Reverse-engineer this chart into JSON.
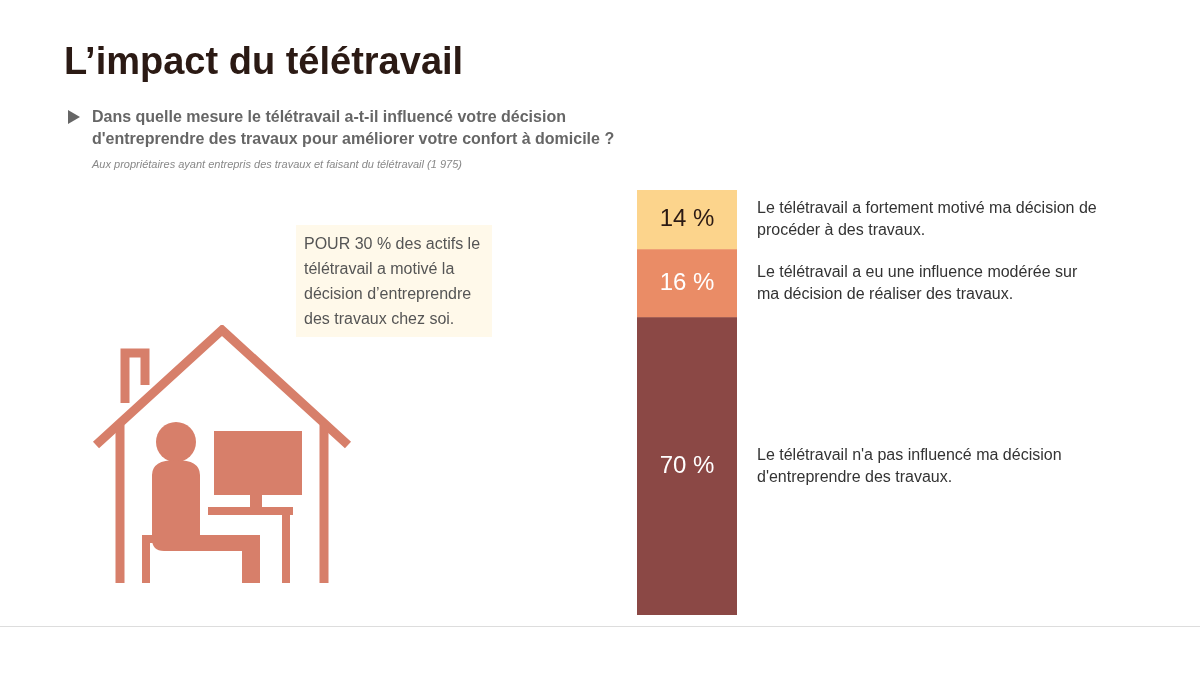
{
  "chart_data": {
    "type": "bar",
    "stacked": true,
    "title": "L’impact du télétravail",
    "subtitle": "Dans quelle mesure le télétravail a-t-il influencé votre décision d'entreprendre des travaux pour améliorer votre confort à domicile ?",
    "annotations": [
      "Aux propriétaires ayant entrepris des travaux et faisant du télétravail (1 975)",
      "POUR 30 % des actifs le télétravail a motivé la décision d’entreprendre des travaux chez soi."
    ],
    "categories": [
      null
    ],
    "series": [
      {
        "name": "Le télétravail n'a pas influencé ma décision d'entreprendre des travaux.",
        "color": "#8b4845",
        "values": [
          70
        ],
        "value_labels": [
          "70 %"
        ]
      },
      {
        "name": "Le télétravail a eu une influence modérée sur ma décision de réaliser des travaux.",
        "color": "#ea8c66",
        "values": [
          16
        ],
        "value_labels": [
          "16 %"
        ]
      },
      {
        "name": "Le télétravail a fortement motivé ma décision de procéder à des travaux.",
        "color": "#fcd48c",
        "values": [
          14
        ],
        "value_labels": [
          "14 %"
        ]
      }
    ],
    "legend": false
  }
}
